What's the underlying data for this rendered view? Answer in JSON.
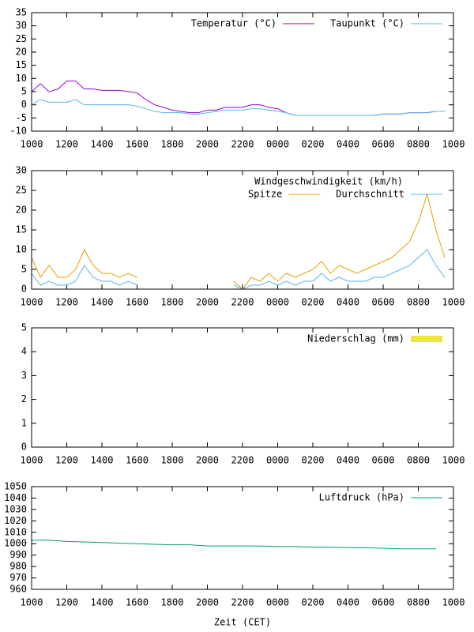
{
  "chart_data": [
    {
      "type": "line",
      "x": [
        10,
        10.5,
        11,
        11.5,
        12,
        12.5,
        13,
        13.5,
        14,
        14.5,
        15,
        15.5,
        16,
        16.5,
        17,
        17.5,
        18,
        18.5,
        19,
        19.5,
        20,
        20.5,
        21,
        21.5,
        22,
        22.5,
        23,
        23.5,
        24,
        24.5,
        25,
        25.5,
        26,
        26.5,
        27,
        27.5,
        28,
        28.5,
        29,
        29.5,
        30,
        30.5,
        31,
        31.5,
        32,
        32.5,
        33,
        33.5,
        34
      ],
      "series": [
        {
          "name": "Temperatur (°C)",
          "color": "#9400d3",
          "values": [
            5,
            8,
            5,
            6,
            9,
            9,
            6,
            6,
            5.5,
            5.5,
            5.5,
            5,
            4.5,
            2,
            0,
            -1,
            -2,
            -2.5,
            -3,
            -3,
            -2,
            -2,
            -1,
            -1,
            -1,
            0,
            0,
            -1,
            -1.5,
            -3,
            -4,
            -4,
            -4,
            -4,
            -4,
            -4,
            -4,
            -4,
            -4,
            -4,
            -3.5,
            -3.5,
            -3.5,
            -3,
            -3,
            -3,
            -2.5,
            -2.5,
            null
          ]
        },
        {
          "name": "Taupunkt (°C)",
          "color": "#56b4e9",
          "values": [
            0,
            2,
            1,
            1,
            1,
            2,
            0,
            0,
            0,
            0,
            0,
            0,
            -0.5,
            -1.5,
            -2.5,
            -3,
            -3,
            -3,
            -3.5,
            -3.5,
            -3,
            -2.5,
            -2,
            -2,
            -2,
            -1.5,
            -1.5,
            -2,
            -2.5,
            -3,
            -4,
            -4,
            -4,
            -4,
            -4,
            -4,
            -4,
            -4,
            -4,
            -4,
            -3.5,
            -3.5,
            -3.5,
            -3,
            -3,
            -3,
            -2.5,
            -2.5,
            null
          ]
        }
      ],
      "xlim": [
        10,
        34
      ],
      "xticks": [
        {
          "value": 10,
          "label": "1000"
        },
        {
          "value": 12,
          "label": "1200"
        },
        {
          "value": 14,
          "label": "1400"
        },
        {
          "value": 16,
          "label": "1600"
        },
        {
          "value": 18,
          "label": "1800"
        },
        {
          "value": 20,
          "label": "2000"
        },
        {
          "value": 22,
          "label": "2200"
        },
        {
          "value": 24,
          "label": "0000"
        },
        {
          "value": 26,
          "label": "0200"
        },
        {
          "value": 28,
          "label": "0400"
        },
        {
          "value": 30,
          "label": "0600"
        },
        {
          "value": 32,
          "label": "0800"
        },
        {
          "value": 34,
          "label": "1000"
        }
      ],
      "ylim": [
        -10,
        35
      ],
      "yticks": [
        -10,
        -5,
        0,
        5,
        10,
        15,
        20,
        25,
        30,
        35
      ]
    },
    {
      "type": "line",
      "legend_title": "Windgeschwindigkeit (km/h)",
      "x": [
        10,
        10.5,
        11,
        11.5,
        12,
        12.5,
        13,
        13.5,
        14,
        14.5,
        15,
        15.5,
        16,
        16.5,
        17,
        17.5,
        18,
        18.5,
        19,
        19.5,
        20,
        20.5,
        21,
        21.5,
        22,
        22.5,
        23,
        23.5,
        24,
        24.5,
        25,
        25.5,
        26,
        26.5,
        27,
        27.5,
        28,
        28.5,
        29,
        29.5,
        30,
        30.5,
        31,
        31.5,
        32,
        32.5,
        33,
        33.5,
        34
      ],
      "series": [
        {
          "name": "Spitze",
          "color": "#e69f00",
          "values": [
            8,
            3,
            6,
            3,
            3,
            5,
            10,
            6,
            4,
            4,
            3,
            4,
            3,
            null,
            null,
            null,
            null,
            null,
            null,
            null,
            null,
            null,
            null,
            2,
            0,
            3,
            2,
            4,
            2,
            4,
            3,
            4,
            5,
            7,
            4,
            6,
            5,
            4,
            5,
            6,
            7,
            8,
            10,
            12,
            17,
            24,
            15,
            8,
            null
          ]
        },
        {
          "name": "Durchschnitt",
          "color": "#56b4e9",
          "values": [
            4,
            1,
            2,
            1,
            1,
            2,
            6,
            3,
            2,
            2,
            1,
            2,
            1,
            null,
            null,
            null,
            null,
            null,
            null,
            null,
            null,
            null,
            null,
            1,
            0,
            1,
            1,
            2,
            1,
            2,
            1,
            2,
            2,
            4,
            2,
            3,
            2,
            2,
            2,
            3,
            3,
            4,
            5,
            6,
            8,
            10,
            6,
            3,
            null
          ]
        }
      ],
      "xlim": [
        10,
        34
      ],
      "xticks": [
        {
          "value": 10,
          "label": "1000"
        },
        {
          "value": 12,
          "label": "1200"
        },
        {
          "value": 14,
          "label": "1400"
        },
        {
          "value": 16,
          "label": "1600"
        },
        {
          "value": 18,
          "label": "1800"
        },
        {
          "value": 20,
          "label": "2000"
        },
        {
          "value": 22,
          "label": "2200"
        },
        {
          "value": 24,
          "label": "0000"
        },
        {
          "value": 26,
          "label": "0200"
        },
        {
          "value": 28,
          "label": "0400"
        },
        {
          "value": 30,
          "label": "0600"
        },
        {
          "value": 32,
          "label": "0800"
        },
        {
          "value": 34,
          "label": "1000"
        }
      ],
      "ylim": [
        0,
        30
      ],
      "yticks": [
        0,
        5,
        10,
        15,
        20,
        25,
        30
      ]
    },
    {
      "type": "bar",
      "x": [
        10,
        11,
        12,
        13,
        14,
        15,
        16,
        17,
        18,
        19,
        20,
        21,
        22,
        23,
        24,
        25,
        26,
        27,
        28,
        29,
        30,
        31,
        32,
        33,
        34
      ],
      "series": [
        {
          "name": "Niederschlag (mm)",
          "color": "#f0e442",
          "values": [
            0,
            0,
            0,
            0,
            0,
            0,
            0,
            0,
            0,
            0,
            0,
            0,
            0,
            0,
            0,
            0,
            0,
            0,
            0,
            0,
            0,
            0,
            0,
            0,
            0
          ]
        }
      ],
      "xlim": [
        10,
        34
      ],
      "xticks": [
        {
          "value": 10,
          "label": "1000"
        },
        {
          "value": 12,
          "label": "1200"
        },
        {
          "value": 14,
          "label": "1400"
        },
        {
          "value": 16,
          "label": "1600"
        },
        {
          "value": 18,
          "label": "1800"
        },
        {
          "value": 20,
          "label": "2000"
        },
        {
          "value": 22,
          "label": "2200"
        },
        {
          "value": 24,
          "label": "0000"
        },
        {
          "value": 26,
          "label": "0200"
        },
        {
          "value": 28,
          "label": "0400"
        },
        {
          "value": 30,
          "label": "0600"
        },
        {
          "value": 32,
          "label": "0800"
        },
        {
          "value": 34,
          "label": "1000"
        }
      ],
      "ylim": [
        0,
        5
      ],
      "yticks": [
        0,
        1,
        2,
        3,
        4,
        5
      ]
    },
    {
      "type": "line",
      "xlabel": "Zeit (CET)",
      "x": [
        10,
        11,
        12,
        13,
        14,
        15,
        16,
        17,
        18,
        19,
        20,
        21,
        22,
        23,
        24,
        25,
        26,
        27,
        28,
        29,
        30,
        31,
        32,
        33,
        34
      ],
      "series": [
        {
          "name": "Luftdruck (hPa)",
          "color": "#009e73",
          "values": [
            1003,
            1003,
            1002,
            1001.5,
            1001,
            1000.5,
            1000,
            999.5,
            999,
            999,
            998,
            998,
            998,
            998,
            997.5,
            997.5,
            997,
            997,
            996.5,
            996.5,
            996,
            995.5,
            995.5,
            995.5,
            null
          ]
        }
      ],
      "xlim": [
        10,
        34
      ],
      "xticks": [
        {
          "value": 10,
          "label": "1000"
        },
        {
          "value": 12,
          "label": "1200"
        },
        {
          "value": 14,
          "label": "1400"
        },
        {
          "value": 16,
          "label": "1600"
        },
        {
          "value": 18,
          "label": "1800"
        },
        {
          "value": 20,
          "label": "2000"
        },
        {
          "value": 22,
          "label": "2200"
        },
        {
          "value": 24,
          "label": "0000"
        },
        {
          "value": 26,
          "label": "0200"
        },
        {
          "value": 28,
          "label": "0400"
        },
        {
          "value": 30,
          "label": "0600"
        },
        {
          "value": 32,
          "label": "0800"
        },
        {
          "value": 34,
          "label": "1000"
        }
      ],
      "ylim": [
        960,
        1050
      ],
      "yticks": [
        960,
        970,
        980,
        990,
        1000,
        1010,
        1020,
        1030,
        1040,
        1050
      ]
    }
  ]
}
